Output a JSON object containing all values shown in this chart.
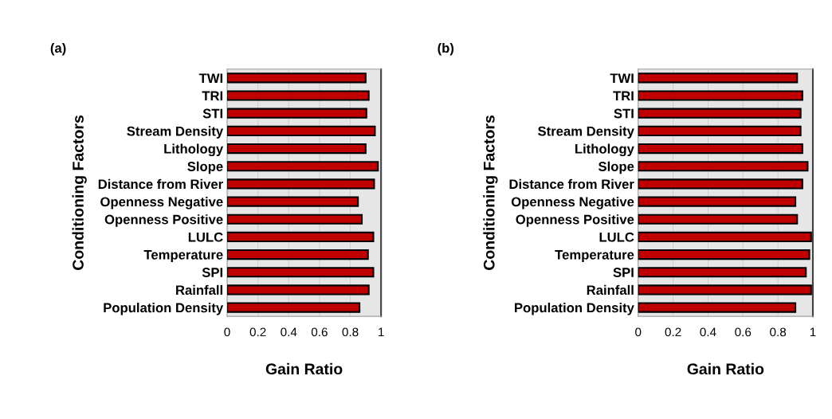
{
  "chart_data": [
    {
      "type": "bar",
      "orientation": "horizontal",
      "title": "(a)",
      "xlabel": "Gain Ratio",
      "ylabel": "Conditioning Factors",
      "categories": [
        "TWI",
        "TRI",
        "STI",
        "Stream Density",
        "Lithology",
        "Slope",
        "Distance from River",
        "Openness Negative",
        "Openness Positive",
        "LULC",
        "Temperature",
        "SPI",
        "Rainfall",
        "Population Density"
      ],
      "values": [
        0.9,
        0.92,
        0.905,
        0.96,
        0.9,
        0.98,
        0.955,
        0.85,
        0.875,
        0.95,
        0.915,
        0.95,
        0.92,
        0.86
      ],
      "color": "#c00000",
      "xlim": [
        0,
        1
      ],
      "xticks": [
        0,
        0.2,
        0.4,
        0.6,
        0.8,
        1
      ],
      "grid": "x"
    },
    {
      "type": "bar",
      "orientation": "horizontal",
      "title": "(b)",
      "xlabel": "Gain Ratio",
      "ylabel": "Conditioning Factors",
      "categories": [
        "TWI",
        "TRI",
        "STI",
        "Stream Density",
        "Lithology",
        "Slope",
        "Distance from River",
        "Openness Negative",
        "Openness Positive",
        "LULC",
        "Temperature",
        "SPI",
        "Rainfall",
        "Population Density"
      ],
      "values": [
        0.91,
        0.94,
        0.93,
        0.93,
        0.94,
        0.97,
        0.94,
        0.9,
        0.91,
        0.99,
        0.98,
        0.96,
        0.99,
        0.9
      ],
      "color": "#c00000",
      "xlim": [
        0,
        1
      ],
      "xticks": [
        0,
        0.2,
        0.4,
        0.6,
        0.8,
        1
      ],
      "grid": "x"
    }
  ]
}
